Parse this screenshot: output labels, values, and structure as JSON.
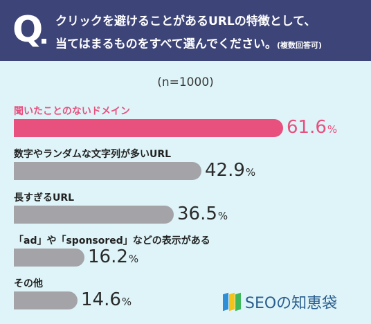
{
  "question": {
    "mark": "Q",
    "line1": "クリックを避けることがあるURLの特徴として、",
    "line2": "当てはまるものをすべて選んでください。",
    "note": "(複数回答可)"
  },
  "sample_note": "(n=1000)",
  "brand": {
    "name": "SEOの知恵袋",
    "colors": [
      "#2f8fd6",
      "#f3c318",
      "#3fb85b"
    ]
  },
  "colors": {
    "highlight": "#e8507e",
    "bar": "#a4a4a8",
    "header": "#3d4477",
    "background": "#def4f8"
  },
  "chart_data": {
    "type": "bar",
    "orientation": "horizontal",
    "unit": "%",
    "categories": [
      "聞いたことのないドメイン",
      "数字やランダムな文字列が多いURL",
      "長すぎるURL",
      "「ad」や「sponsored」などの表示がある",
      "その他"
    ],
    "values": [
      61.6,
      42.9,
      36.5,
      16.2,
      14.6
    ],
    "labels": [
      "61.6",
      "42.9",
      "36.5",
      "16.2",
      "14.6"
    ],
    "highlight_index": 0
  }
}
